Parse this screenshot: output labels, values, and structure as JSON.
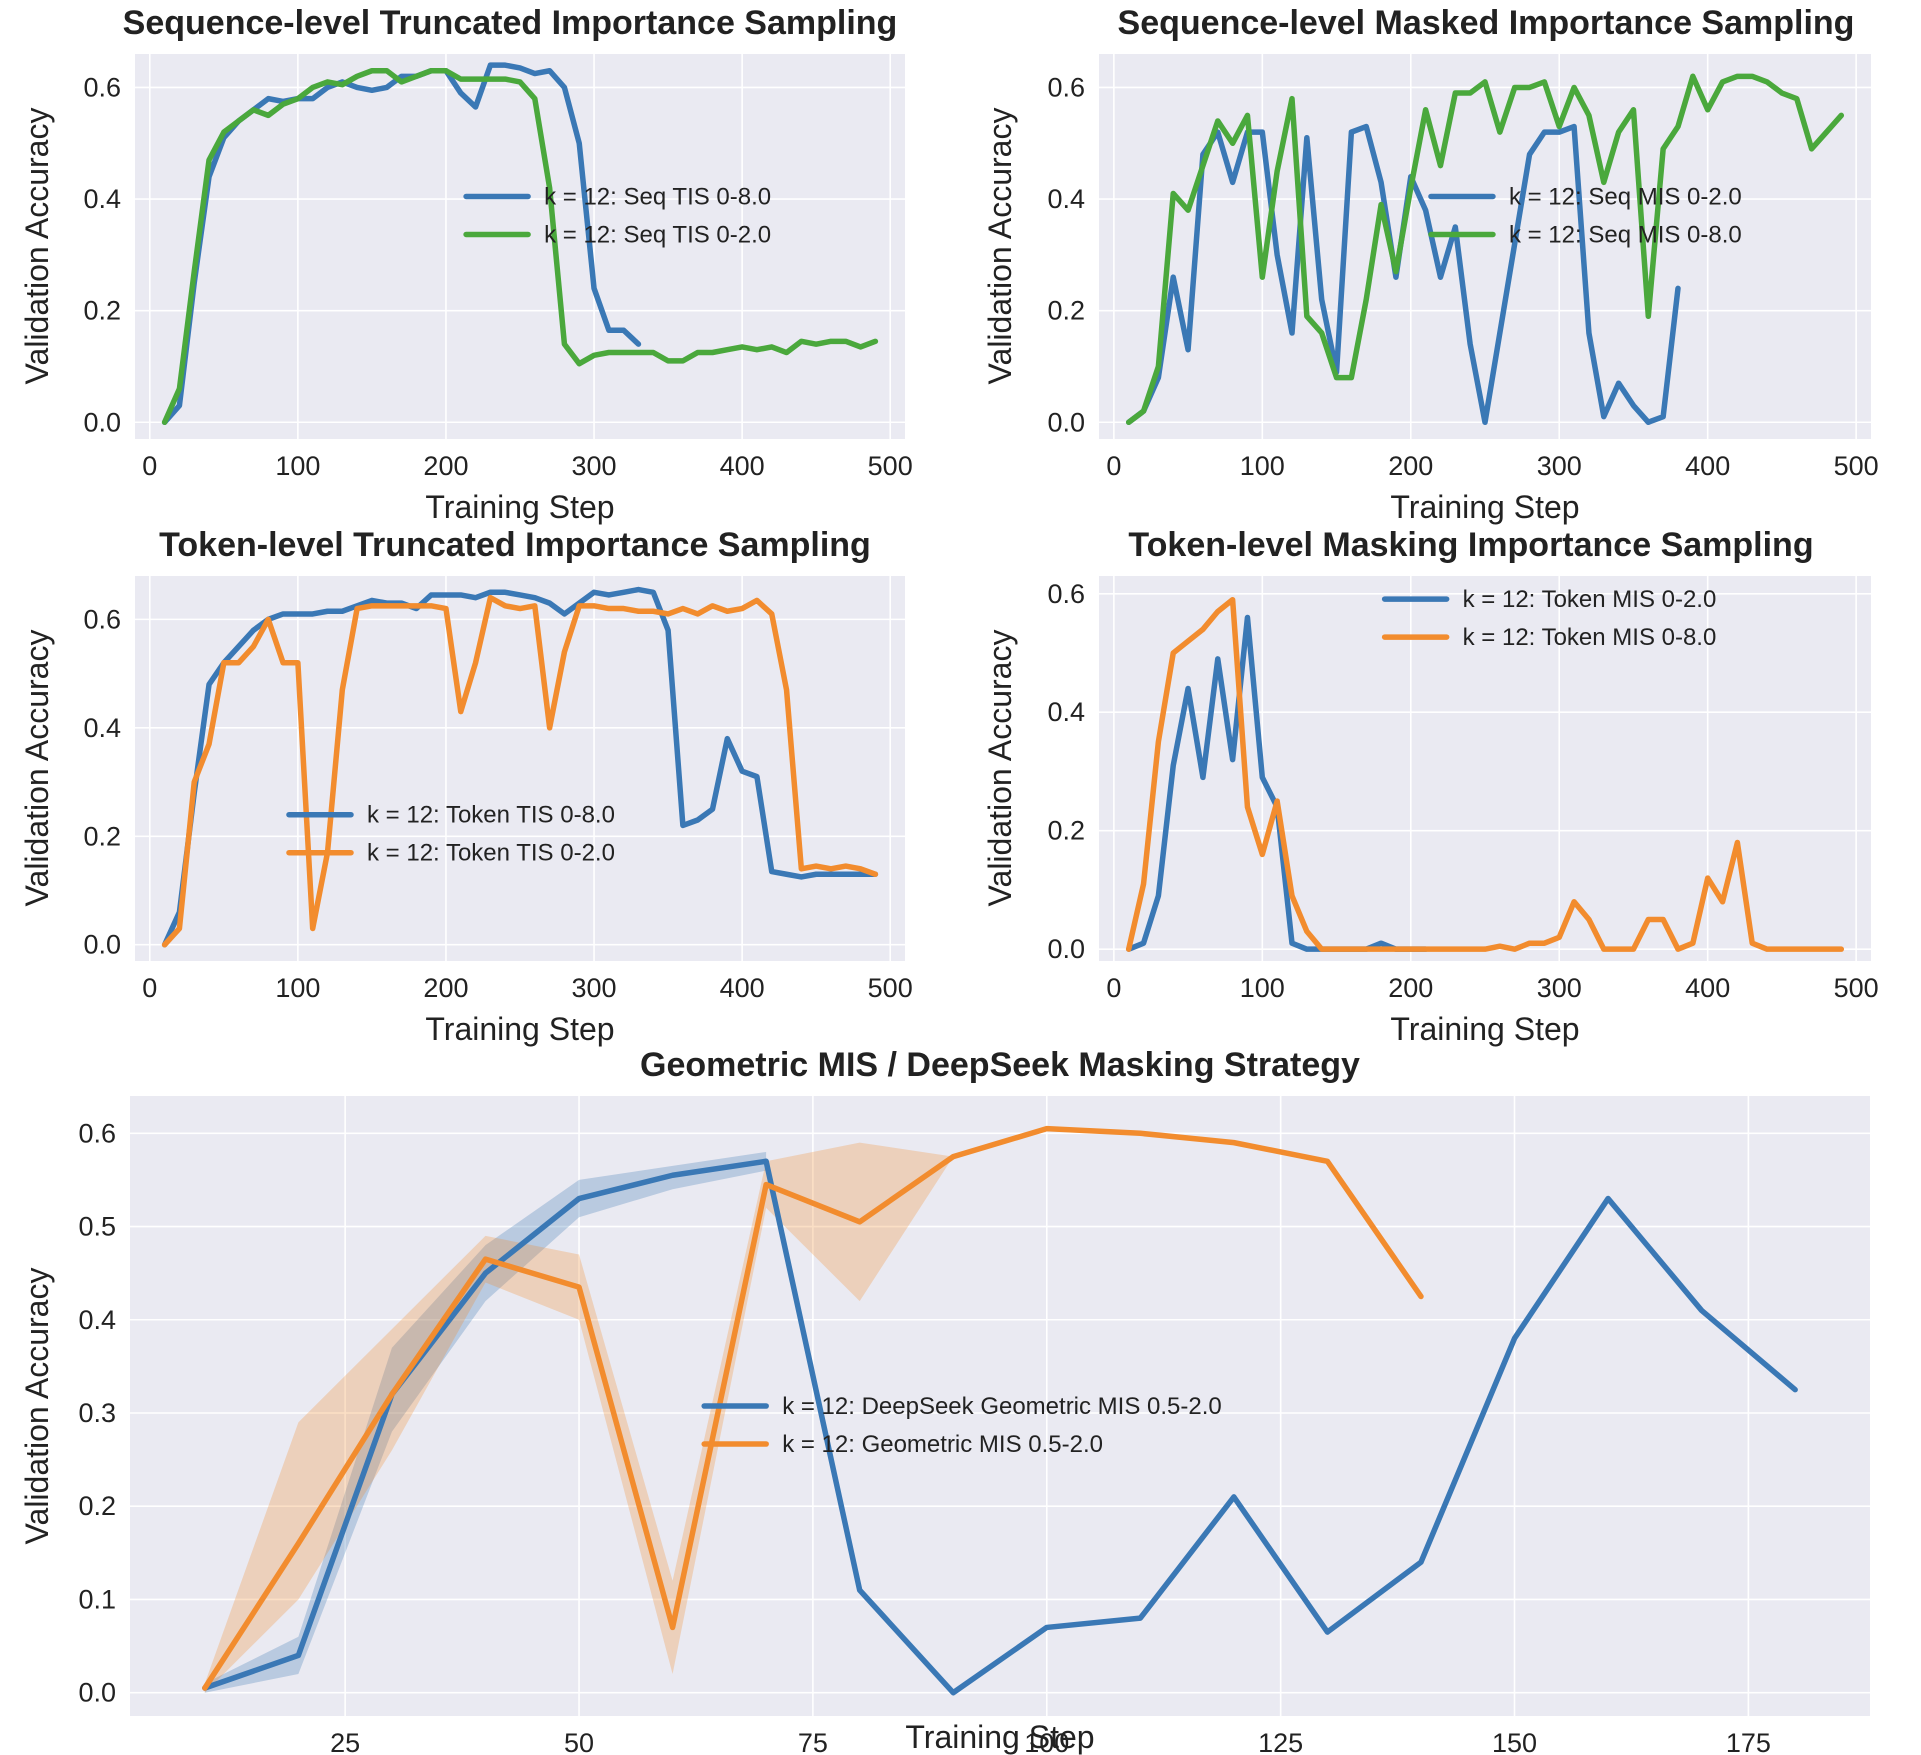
{
  "colors": {
    "blue": "#3a78b5",
    "green": "#4aa83c",
    "orange": "#f28c2e",
    "plot_bg": "#eaeaf2"
  },
  "chart_data": [
    {
      "type": "line",
      "title": "Sequence-level Truncated Importance Sampling",
      "xlabel": "Training Step",
      "ylabel": "Validation Accuracy",
      "xlim": [
        -10,
        510
      ],
      "ylim": [
        -0.03,
        0.66
      ],
      "xticks": [
        0,
        100,
        200,
        300,
        400,
        500
      ],
      "yticks": [
        0.0,
        0.2,
        0.4,
        0.6
      ],
      "ytick_labels": [
        "0.0",
        "0.2",
        "0.4",
        "0.6"
      ],
      "legend_position": "center-right",
      "series": [
        {
          "name": "k = 12: Seq TIS 0-8.0",
          "color": "#3a78b5",
          "x": [
            10,
            20,
            30,
            40,
            50,
            60,
            70,
            80,
            90,
            100,
            110,
            120,
            130,
            140,
            150,
            160,
            170,
            180,
            190,
            200,
            210,
            220,
            230,
            240,
            250,
            260,
            270,
            280,
            290,
            300,
            310,
            320,
            330
          ],
          "y": [
            0.0,
            0.03,
            0.25,
            0.44,
            0.51,
            0.54,
            0.56,
            0.58,
            0.575,
            0.58,
            0.58,
            0.6,
            0.61,
            0.6,
            0.595,
            0.6,
            0.62,
            0.62,
            0.63,
            0.63,
            0.59,
            0.565,
            0.64,
            0.64,
            0.635,
            0.625,
            0.63,
            0.6,
            0.5,
            0.24,
            0.165,
            0.165,
            0.14
          ]
        },
        {
          "name": "k = 12: Seq TIS 0-2.0",
          "color": "#4aa83c",
          "x": [
            10,
            20,
            30,
            40,
            50,
            60,
            70,
            80,
            90,
            100,
            110,
            120,
            130,
            140,
            150,
            160,
            170,
            180,
            190,
            200,
            210,
            220,
            230,
            240,
            250,
            260,
            270,
            280,
            290,
            300,
            310,
            320,
            330,
            340,
            350,
            360,
            370,
            380,
            390,
            400,
            410,
            420,
            430,
            440,
            450,
            460,
            470,
            480,
            490
          ],
          "y": [
            0.0,
            0.06,
            0.27,
            0.47,
            0.52,
            0.54,
            0.56,
            0.55,
            0.57,
            0.58,
            0.6,
            0.61,
            0.605,
            0.62,
            0.63,
            0.63,
            0.61,
            0.62,
            0.63,
            0.63,
            0.615,
            0.615,
            0.615,
            0.615,
            0.61,
            0.58,
            0.42,
            0.14,
            0.105,
            0.12,
            0.125,
            0.125,
            0.125,
            0.125,
            0.11,
            0.11,
            0.125,
            0.125,
            0.13,
            0.135,
            0.13,
            0.135,
            0.125,
            0.145,
            0.14,
            0.145,
            0.145,
            0.135,
            0.145
          ]
        }
      ]
    },
    {
      "type": "line",
      "title": "Sequence-level Masked Importance Sampling",
      "xlabel": "Training Step",
      "ylabel": "Validation Accuracy",
      "xlim": [
        -10,
        510
      ],
      "ylim": [
        -0.03,
        0.66
      ],
      "xticks": [
        0,
        100,
        200,
        300,
        400,
        500
      ],
      "yticks": [
        0.0,
        0.2,
        0.4,
        0.6
      ],
      "ytick_labels": [
        "0.0",
        "0.2",
        "0.4",
        "0.6"
      ],
      "legend_position": "center-right",
      "series": [
        {
          "name": "k = 12: Seq MIS 0-2.0",
          "color": "#3a78b5",
          "x": [
            10,
            20,
            30,
            40,
            50,
            60,
            70,
            80,
            90,
            100,
            110,
            120,
            130,
            140,
            150,
            160,
            170,
            180,
            190,
            200,
            210,
            220,
            230,
            240,
            250,
            260,
            270,
            280,
            290,
            300,
            310,
            320,
            330,
            340,
            350,
            360,
            370,
            380
          ],
          "y": [
            0.0,
            0.02,
            0.08,
            0.26,
            0.13,
            0.48,
            0.52,
            0.43,
            0.52,
            0.52,
            0.3,
            0.16,
            0.51,
            0.22,
            0.09,
            0.52,
            0.53,
            0.43,
            0.26,
            0.44,
            0.38,
            0.26,
            0.35,
            0.14,
            0.0,
            0.16,
            0.32,
            0.48,
            0.52,
            0.52,
            0.53,
            0.16,
            0.01,
            0.07,
            0.03,
            0.0,
            0.01,
            0.24
          ]
        },
        {
          "name": "k = 12: Seq MIS 0-8.0",
          "color": "#4aa83c",
          "x": [
            10,
            20,
            30,
            40,
            50,
            60,
            70,
            80,
            90,
            100,
            110,
            120,
            130,
            140,
            150,
            160,
            170,
            180,
            190,
            200,
            210,
            220,
            230,
            240,
            250,
            260,
            270,
            280,
            290,
            300,
            310,
            320,
            330,
            340,
            350,
            360,
            370,
            380,
            390,
            400,
            410,
            420,
            430,
            440,
            450,
            460,
            470,
            480,
            490
          ],
          "y": [
            0.0,
            0.02,
            0.1,
            0.41,
            0.38,
            0.46,
            0.54,
            0.5,
            0.55,
            0.26,
            0.45,
            0.58,
            0.19,
            0.16,
            0.08,
            0.08,
            0.22,
            0.39,
            0.27,
            0.42,
            0.56,
            0.46,
            0.59,
            0.59,
            0.61,
            0.52,
            0.6,
            0.6,
            0.61,
            0.53,
            0.6,
            0.55,
            0.43,
            0.52,
            0.56,
            0.19,
            0.49,
            0.53,
            0.62,
            0.56,
            0.61,
            0.62,
            0.62,
            0.61,
            0.59,
            0.58,
            0.49,
            0.52,
            0.55
          ]
        }
      ]
    },
    {
      "type": "line",
      "title": "Token-level Truncated Importance Sampling",
      "xlabel": "Training Step",
      "ylabel": "Validation Accuracy",
      "xlim": [
        -10,
        510
      ],
      "ylim": [
        -0.03,
        0.68
      ],
      "xticks": [
        0,
        100,
        200,
        300,
        400,
        500
      ],
      "yticks": [
        0.0,
        0.2,
        0.4,
        0.6
      ],
      "ytick_labels": [
        "0.0",
        "0.2",
        "0.4",
        "0.6"
      ],
      "legend_position": "lower-left",
      "series": [
        {
          "name": "k = 12: Token TIS 0-8.0",
          "color": "#3a78b5",
          "x": [
            10,
            20,
            30,
            40,
            50,
            60,
            70,
            80,
            90,
            100,
            110,
            120,
            130,
            140,
            150,
            160,
            170,
            180,
            190,
            200,
            210,
            220,
            230,
            240,
            250,
            260,
            270,
            280,
            290,
            300,
            310,
            320,
            330,
            340,
            350,
            360,
            370,
            380,
            390,
            400,
            410,
            420,
            430,
            440,
            450,
            460,
            470,
            480,
            490
          ],
          "y": [
            0.0,
            0.06,
            0.28,
            0.48,
            0.52,
            0.55,
            0.58,
            0.6,
            0.61,
            0.61,
            0.61,
            0.615,
            0.615,
            0.625,
            0.635,
            0.63,
            0.63,
            0.62,
            0.645,
            0.645,
            0.645,
            0.64,
            0.65,
            0.65,
            0.645,
            0.64,
            0.63,
            0.61,
            0.63,
            0.65,
            0.645,
            0.65,
            0.655,
            0.65,
            0.58,
            0.22,
            0.23,
            0.25,
            0.38,
            0.32,
            0.31,
            0.135,
            0.13,
            0.125,
            0.13,
            0.13,
            0.13,
            0.13,
            0.13
          ]
        },
        {
          "name": "k = 12: Token TIS 0-2.0",
          "color": "#f28c2e",
          "x": [
            10,
            20,
            30,
            40,
            50,
            60,
            70,
            80,
            90,
            100,
            110,
            120,
            130,
            140,
            150,
            160,
            170,
            180,
            190,
            200,
            210,
            220,
            230,
            240,
            250,
            260,
            270,
            280,
            290,
            300,
            310,
            320,
            330,
            340,
            350,
            360,
            370,
            380,
            390,
            400,
            410,
            420,
            430,
            440,
            450,
            460,
            470,
            480,
            490
          ],
          "y": [
            0.0,
            0.03,
            0.3,
            0.37,
            0.52,
            0.52,
            0.55,
            0.6,
            0.52,
            0.52,
            0.03,
            0.17,
            0.47,
            0.62,
            0.625,
            0.625,
            0.625,
            0.625,
            0.625,
            0.62,
            0.43,
            0.52,
            0.64,
            0.625,
            0.62,
            0.625,
            0.4,
            0.54,
            0.625,
            0.625,
            0.62,
            0.62,
            0.615,
            0.615,
            0.61,
            0.62,
            0.61,
            0.625,
            0.615,
            0.62,
            0.635,
            0.61,
            0.47,
            0.14,
            0.145,
            0.14,
            0.145,
            0.14,
            0.13
          ]
        }
      ]
    },
    {
      "type": "line",
      "title": "Token-level Masking Importance Sampling",
      "xlabel": "Training Step",
      "ylabel": "Validation Accuracy",
      "xlim": [
        -10,
        510
      ],
      "ylim": [
        -0.02,
        0.63
      ],
      "xticks": [
        0,
        100,
        200,
        300,
        400,
        500
      ],
      "yticks": [
        0.0,
        0.2,
        0.4,
        0.6
      ],
      "ytick_labels": [
        "0.0",
        "0.2",
        "0.4",
        "0.6"
      ],
      "legend_position": "upper-right",
      "series": [
        {
          "name": "k = 12:  Token MIS 0-2.0",
          "color": "#3a78b5",
          "x": [
            10,
            20,
            30,
            40,
            50,
            60,
            70,
            80,
            90,
            100,
            110,
            120,
            130,
            140,
            150,
            160,
            170,
            180,
            190,
            200,
            210
          ],
          "y": [
            0.0,
            0.01,
            0.09,
            0.31,
            0.44,
            0.29,
            0.49,
            0.32,
            0.56,
            0.29,
            0.24,
            0.01,
            0.0,
            0.0,
            0.0,
            0.0,
            0.0,
            0.01,
            0.0,
            0.0,
            0.0
          ]
        },
        {
          "name": "k = 12: Token MIS 0-8.0",
          "color": "#f28c2e",
          "x": [
            10,
            20,
            30,
            40,
            50,
            60,
            70,
            80,
            90,
            100,
            110,
            120,
            130,
            140,
            150,
            160,
            170,
            180,
            190,
            200,
            210,
            220,
            230,
            240,
            250,
            260,
            270,
            280,
            290,
            300,
            310,
            320,
            330,
            340,
            350,
            360,
            370,
            380,
            390,
            400,
            410,
            420,
            430,
            440,
            450,
            460,
            470,
            480,
            490
          ],
          "y": [
            0.0,
            0.11,
            0.35,
            0.5,
            0.52,
            0.54,
            0.57,
            0.59,
            0.24,
            0.16,
            0.25,
            0.09,
            0.03,
            0.0,
            0.0,
            0.0,
            0.0,
            0.0,
            0.0,
            0.0,
            0.0,
            0.0,
            0.0,
            0.0,
            0.0,
            0.005,
            0.0,
            0.01,
            0.01,
            0.02,
            0.08,
            0.05,
            0.0,
            0.0,
            0.0,
            0.05,
            0.05,
            0.0,
            0.01,
            0.12,
            0.08,
            0.18,
            0.01,
            0.0,
            0.0,
            0.0,
            0.0,
            0.0,
            0.0
          ]
        }
      ]
    },
    {
      "type": "line",
      "title": "Geometric MIS / DeepSeek Masking Strategy",
      "xlabel": "Training Step",
      "ylabel": "Validation Accuracy",
      "xlim": [
        2,
        188
      ],
      "ylim": [
        -0.025,
        0.64
      ],
      "xticks": [
        25,
        50,
        75,
        100,
        125,
        150,
        175
      ],
      "yticks": [
        0.0,
        0.1,
        0.2,
        0.3,
        0.4,
        0.5,
        0.6
      ],
      "ytick_labels": [
        "0.0",
        "0.1",
        "0.2",
        "0.3",
        "0.4",
        "0.5",
        "0.6"
      ],
      "legend_position": "center",
      "series": [
        {
          "name": "k = 12: DeepSeek Geometric MIS 0.5-2.0",
          "color": "#3a78b5",
          "x": [
            10,
            20,
            30,
            40,
            50,
            60,
            70,
            80,
            90,
            100,
            110,
            120,
            130,
            140,
            150,
            160,
            170,
            180
          ],
          "y": [
            0.005,
            0.04,
            0.32,
            0.45,
            0.53,
            0.555,
            0.57,
            0.11,
            0.0,
            0.07,
            0.08,
            0.21,
            0.065,
            0.14,
            0.38,
            0.53,
            0.41,
            0.325
          ],
          "band_x": [
            10,
            20,
            30,
            40,
            50,
            60,
            70
          ],
          "band_low": [
            0.0,
            0.02,
            0.28,
            0.42,
            0.51,
            0.54,
            0.56
          ],
          "band_high": [
            0.01,
            0.06,
            0.37,
            0.48,
            0.55,
            0.565,
            0.58
          ]
        },
        {
          "name": "k = 12: Geometric MIS 0.5-2.0",
          "color": "#f28c2e",
          "x": [
            10,
            20,
            30,
            40,
            50,
            60,
            70,
            80,
            90,
            100,
            110,
            120,
            130,
            140
          ],
          "y": [
            0.005,
            0.16,
            0.32,
            0.465,
            0.435,
            0.07,
            0.545,
            0.505,
            0.575,
            0.605,
            0.6,
            0.59,
            0.57,
            0.425
          ],
          "band_x": [
            10,
            20,
            30,
            40,
            50,
            60,
            70,
            80,
            90
          ],
          "band_low": [
            0.0,
            0.1,
            0.26,
            0.44,
            0.4,
            0.02,
            0.52,
            0.42,
            0.575
          ],
          "band_high": [
            0.01,
            0.29,
            0.39,
            0.49,
            0.47,
            0.12,
            0.57,
            0.59,
            0.575
          ]
        }
      ]
    }
  ]
}
